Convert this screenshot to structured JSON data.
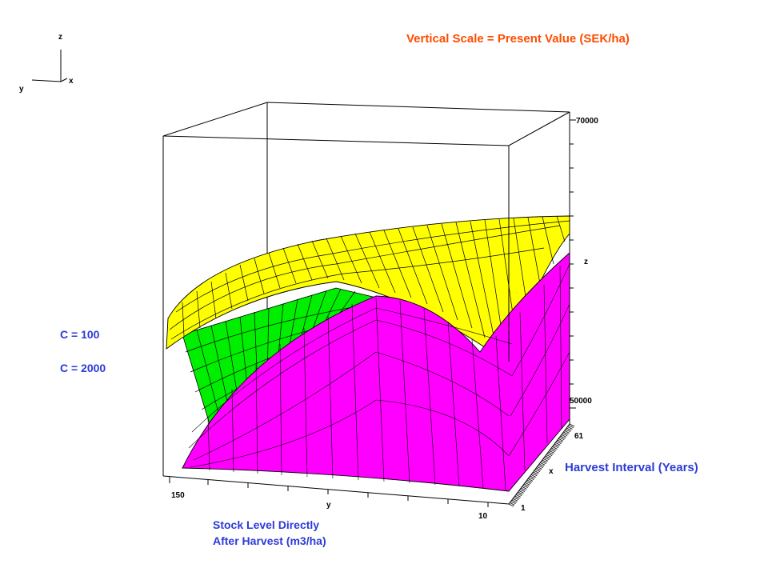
{
  "chart_data": {
    "type": "surface3d",
    "title": "Vertical Scale = Present Value (SEK/ha)",
    "x_axis": {
      "label": "Harvest Interval (Years)",
      "letter": "x",
      "range": [
        1,
        61
      ],
      "ticks": [
        "1",
        "61"
      ]
    },
    "y_axis": {
      "label_line1": "Stock Level Directly",
      "label_line2": "After Harvest (m3/ha)",
      "letter": "y",
      "range": [
        10,
        150
      ],
      "ticks": [
        "150",
        "10"
      ]
    },
    "z_axis": {
      "letter": "z",
      "range": [
        50000,
        70000
      ],
      "ticks": [
        "50000",
        "70000"
      ]
    },
    "orientation_axes": {
      "z": "z",
      "y": "y",
      "x": "x"
    },
    "series": [
      {
        "name": "C = 100",
        "color": "#ffff00",
        "underside_color": "#00ee00"
      },
      {
        "name": "C = 2000",
        "color": "#ff00ff"
      }
    ]
  }
}
